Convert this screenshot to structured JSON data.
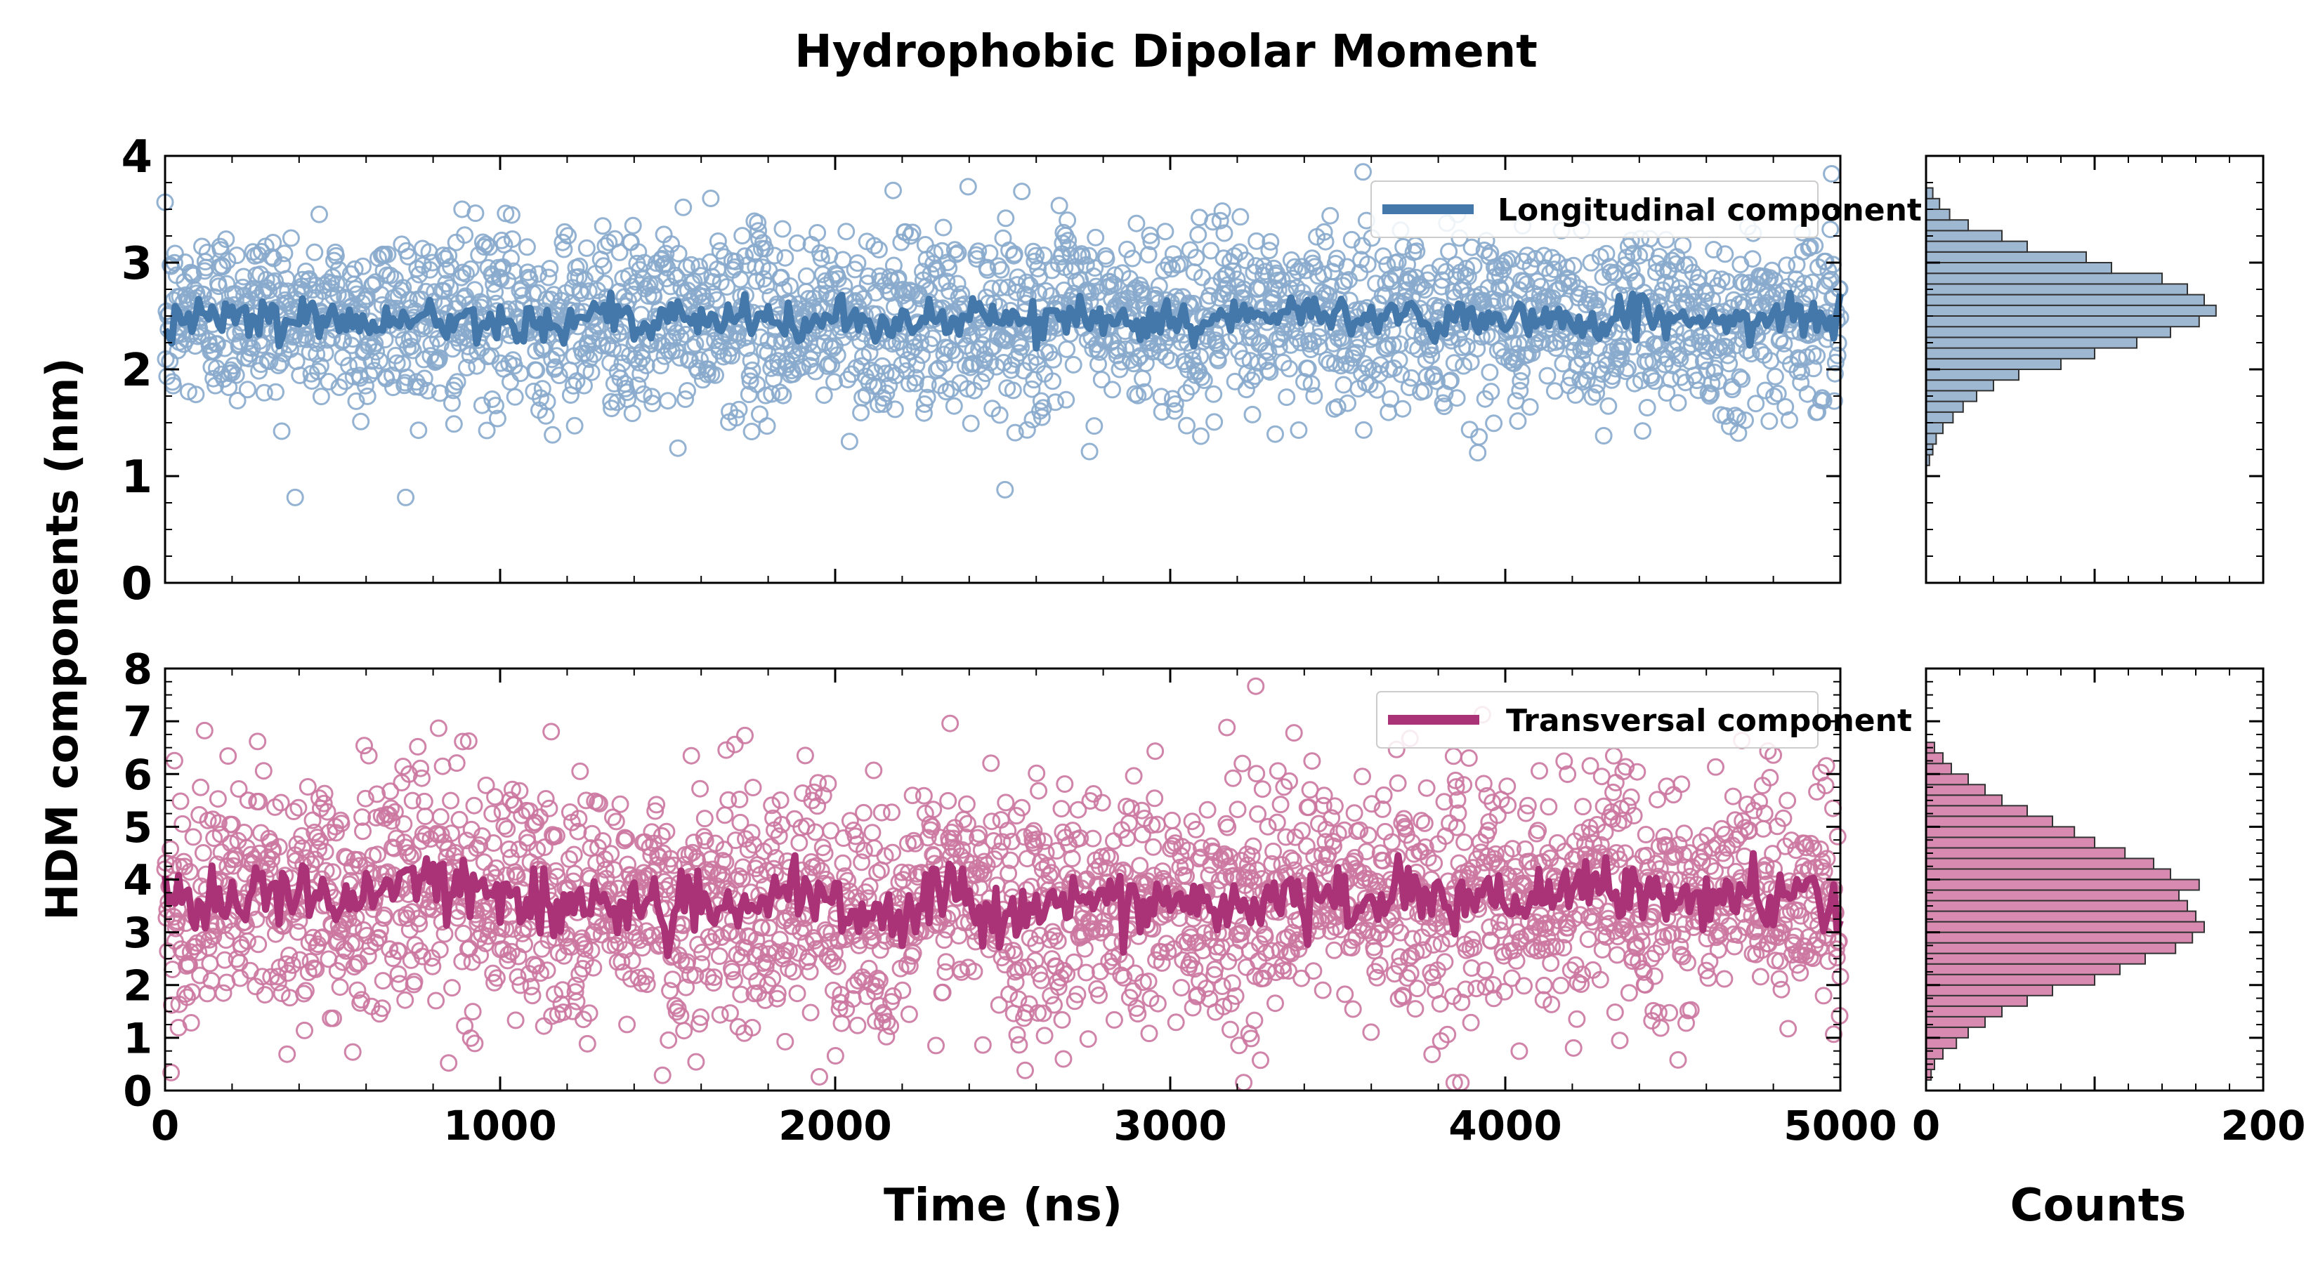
{
  "title": "Hydrophobic Dipolar Moment",
  "ylabel": "HDM components (nm)",
  "xlabel": "Time (ns)",
  "hist_xlabel": "Counts",
  "colors": {
    "longitudinal": "#4477aa",
    "longitudinal_light": "#88aacc",
    "transversal": "#aa3377",
    "transversal_light": "#cc77a0",
    "hist_long_fill": "#9fb8d2",
    "hist_trans_fill": "#d88ab0",
    "axis": "#000000"
  },
  "chart_data": [
    {
      "type": "scatter+line",
      "id": "longitudinal",
      "legend": "Longitudinal component",
      "legend_position": "top-right",
      "xlim": [
        0,
        5000
      ],
      "ylim": [
        0,
        4
      ],
      "x_ticks": [
        0,
        1000,
        2000,
        3000,
        4000,
        5000
      ],
      "y_ticks": [
        0,
        1,
        2,
        3,
        4
      ],
      "x_tick_labels_visible": false,
      "scatter_summary": {
        "n_points": 2500,
        "center": 2.45,
        "spread_sd": 0.42,
        "min": 0.8,
        "max": 3.85
      },
      "running_mean": {
        "x": [
          0,
          100,
          200,
          300,
          400,
          500,
          600,
          700,
          800,
          900,
          1000,
          1100,
          1200,
          1300,
          1400,
          1500,
          1600,
          1700,
          1800,
          1900,
          2000,
          2100,
          2200,
          2300,
          2400,
          2500,
          2600,
          2700,
          2800,
          2900,
          3000,
          3100,
          3200,
          3300,
          3400,
          3500,
          3600,
          3700,
          3800,
          3900,
          4000,
          4100,
          4200,
          4300,
          4400,
          4500,
          4600,
          4700,
          4800,
          4900,
          5000
        ],
        "y": [
          2.4,
          2.55,
          2.5,
          2.55,
          2.45,
          2.5,
          2.4,
          2.55,
          2.4,
          2.5,
          2.45,
          2.5,
          2.4,
          2.6,
          2.35,
          2.5,
          2.4,
          2.5,
          2.45,
          2.4,
          2.5,
          2.45,
          2.4,
          2.5,
          2.45,
          2.5,
          2.4,
          2.55,
          2.45,
          2.45,
          2.5,
          2.4,
          2.5,
          2.45,
          2.55,
          2.5,
          2.45,
          2.6,
          2.4,
          2.55,
          2.45,
          2.5,
          2.45,
          2.4,
          2.55,
          2.5,
          2.45,
          2.4,
          2.5,
          2.45,
          2.5
        ]
      }
    },
    {
      "type": "scatter+line",
      "id": "transversal",
      "legend": "Transversal component",
      "legend_position": "top-right",
      "xlim": [
        0,
        5000
      ],
      "ylim": [
        0,
        8
      ],
      "x_ticks": [
        0,
        1000,
        2000,
        3000,
        4000,
        5000
      ],
      "x_tick_labels": [
        "0",
        "1000",
        "2000",
        "3000",
        "4000",
        "5000"
      ],
      "y_ticks": [
        0,
        1,
        2,
        3,
        4,
        5,
        6,
        7,
        8
      ],
      "scatter_summary": {
        "n_points": 2500,
        "center": 3.6,
        "spread_sd": 1.15,
        "min": 0.15,
        "max": 7.7
      },
      "running_mean": {
        "x": [
          0,
          100,
          200,
          300,
          400,
          500,
          600,
          700,
          800,
          900,
          1000,
          1100,
          1200,
          1300,
          1400,
          1500,
          1600,
          1700,
          1800,
          1900,
          2000,
          2100,
          2200,
          2300,
          2400,
          2500,
          2600,
          2700,
          2800,
          2900,
          3000,
          3100,
          3200,
          3300,
          3400,
          3500,
          3600,
          3700,
          3800,
          3900,
          4000,
          4100,
          4200,
          4300,
          4400,
          4500,
          4600,
          4700,
          4800,
          4900,
          5000
        ],
        "y": [
          3.8,
          3.5,
          3.6,
          3.8,
          3.7,
          3.5,
          3.6,
          3.9,
          4.2,
          3.7,
          3.8,
          3.6,
          3.4,
          3.7,
          3.5,
          3.3,
          3.6,
          3.4,
          3.5,
          3.7,
          3.5,
          3.3,
          3.1,
          3.9,
          3.6,
          3.4,
          3.5,
          3.6,
          3.7,
          3.5,
          3.4,
          3.6,
          3.5,
          3.5,
          3.6,
          3.7,
          3.6,
          3.8,
          3.5,
          3.7,
          3.5,
          3.6,
          3.7,
          3.9,
          3.6,
          3.8,
          3.5,
          3.7,
          3.6,
          3.8,
          3.4
        ]
      }
    },
    {
      "type": "histogram",
      "id": "hist_longitudinal",
      "orientation": "horizontal",
      "xlim": [
        0,
        200
      ],
      "ylim": [
        0,
        4
      ],
      "bin_width": 0.1,
      "bins_start": [
        1.1,
        1.2,
        1.3,
        1.4,
        1.5,
        1.6,
        1.7,
        1.8,
        1.9,
        2.0,
        2.1,
        2.2,
        2.3,
        2.4,
        2.5,
        2.6,
        2.7,
        2.8,
        2.9,
        3.0,
        3.1,
        3.2,
        3.3,
        3.4,
        3.5,
        3.6
      ],
      "counts": [
        2,
        4,
        6,
        10,
        16,
        22,
        30,
        40,
        55,
        80,
        100,
        125,
        145,
        162,
        172,
        165,
        155,
        140,
        110,
        95,
        60,
        45,
        25,
        14,
        8,
        4
      ]
    },
    {
      "type": "histogram",
      "id": "hist_transversal",
      "orientation": "horizontal",
      "xlim": [
        0,
        200
      ],
      "x_ticks": [
        0,
        200
      ],
      "x_tick_labels": [
        "0",
        "200"
      ],
      "ylim": [
        0,
        8
      ],
      "bin_width": 0.2,
      "bins_start": [
        0.2,
        0.4,
        0.6,
        0.8,
        1.0,
        1.2,
        1.4,
        1.6,
        1.8,
        2.0,
        2.2,
        2.4,
        2.6,
        2.8,
        3.0,
        3.2,
        3.4,
        3.6,
        3.8,
        4.0,
        4.2,
        4.4,
        4.6,
        4.8,
        5.0,
        5.2,
        5.4,
        5.6,
        5.8,
        6.0,
        6.2,
        6.4
      ],
      "counts": [
        3,
        5,
        10,
        18,
        25,
        35,
        45,
        60,
        75,
        100,
        115,
        130,
        148,
        158,
        165,
        160,
        155,
        150,
        162,
        145,
        135,
        118,
        100,
        88,
        75,
        60,
        45,
        35,
        25,
        15,
        10,
        5
      ]
    }
  ]
}
